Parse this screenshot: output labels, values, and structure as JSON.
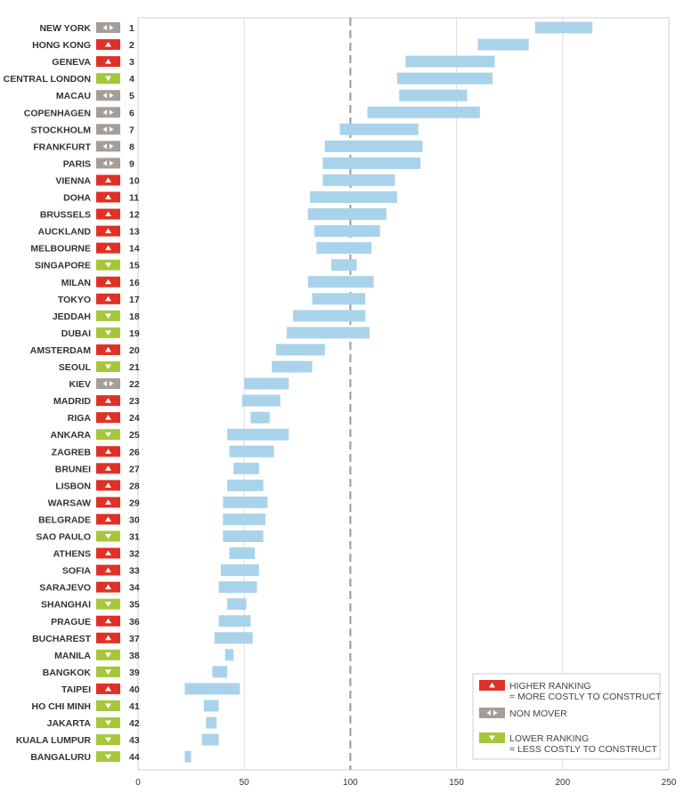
{
  "chart_data": {
    "type": "range-bar",
    "x_axis": {
      "min": 0,
      "max": 250,
      "ticks": [
        0,
        50,
        100,
        150,
        200,
        250
      ],
      "reference_line": 100
    },
    "grid": true,
    "colors": {
      "bar": "#a9d3ea",
      "higher": "#e03127",
      "non_mover": "#a59e98",
      "lower": "#a6c73a",
      "reference": "#999999"
    },
    "rows": [
      {
        "city": "NEW YORK",
        "rank": "1",
        "status": "non_mover",
        "low": 187,
        "high": 214
      },
      {
        "city": "HONG KONG",
        "rank": "2",
        "status": "higher",
        "low": 160,
        "high": 184
      },
      {
        "city": "GENEVA",
        "rank": "3",
        "status": "higher",
        "low": 126,
        "high": 168
      },
      {
        "city": "CENTRAL LONDON",
        "rank": "4",
        "status": "lower",
        "low": 122,
        "high": 167
      },
      {
        "city": "MACAU",
        "rank": "5",
        "status": "non_mover",
        "low": 123,
        "high": 155
      },
      {
        "city": "COPENHAGEN",
        "rank": "6",
        "status": "non_mover",
        "low": 108,
        "high": 161
      },
      {
        "city": "STOCKHOLM",
        "rank": "7",
        "status": "non_mover",
        "low": 95,
        "high": 132
      },
      {
        "city": "FRANKFURT",
        "rank": "8",
        "status": "non_mover",
        "low": 88,
        "high": 134
      },
      {
        "city": "PARIS",
        "rank": "9",
        "status": "non_mover",
        "low": 87,
        "high": 133
      },
      {
        "city": "VIENNA",
        "rank": "10",
        "status": "higher",
        "low": 87,
        "high": 121
      },
      {
        "city": "DOHA",
        "rank": "11",
        "status": "higher",
        "low": 81,
        "high": 122
      },
      {
        "city": "BRUSSELS",
        "rank": "12",
        "status": "higher",
        "low": 80,
        "high": 117
      },
      {
        "city": "AUCKLAND",
        "rank": "13",
        "status": "higher",
        "low": 83,
        "high": 114
      },
      {
        "city": "MELBOURNE",
        "rank": "14",
        "status": "higher",
        "low": 84,
        "high": 110
      },
      {
        "city": "SINGAPORE",
        "rank": "15",
        "status": "lower",
        "low": 91,
        "high": 103
      },
      {
        "city": "MILAN",
        "rank": "16",
        "status": "higher",
        "low": 80,
        "high": 111
      },
      {
        "city": "TOKYO",
        "rank": "17",
        "status": "higher",
        "low": 82,
        "high": 107
      },
      {
        "city": "JEDDAH",
        "rank": "18",
        "status": "lower",
        "low": 73,
        "high": 107
      },
      {
        "city": "DUBAI",
        "rank": "19",
        "status": "lower",
        "low": 70,
        "high": 109
      },
      {
        "city": "AMSTERDAM",
        "rank": "20",
        "status": "higher",
        "low": 65,
        "high": 88
      },
      {
        "city": "SEOUL",
        "rank": "21",
        "status": "lower",
        "low": 63,
        "high": 82
      },
      {
        "city": "KIEV",
        "rank": "22",
        "status": "non_mover",
        "low": 50,
        "high": 71
      },
      {
        "city": "MADRID",
        "rank": "23",
        "status": "higher",
        "low": 49,
        "high": 67
      },
      {
        "city": "RIGA",
        "rank": "24",
        "status": "higher",
        "low": 53,
        "high": 62
      },
      {
        "city": "ANKARA",
        "rank": "25",
        "status": "lower",
        "low": 42,
        "high": 71
      },
      {
        "city": "ZAGREB",
        "rank": "26",
        "status": "higher",
        "low": 43,
        "high": 64
      },
      {
        "city": "BRUNEI",
        "rank": "27",
        "status": "higher",
        "low": 45,
        "high": 57
      },
      {
        "city": "LISBON",
        "rank": "28",
        "status": "higher",
        "low": 42,
        "high": 59
      },
      {
        "city": "WARSAW",
        "rank": "29",
        "status": "higher",
        "low": 40,
        "high": 61
      },
      {
        "city": "BELGRADE",
        "rank": "30",
        "status": "higher",
        "low": 40,
        "high": 60
      },
      {
        "city": "SAO PAULO",
        "rank": "31",
        "status": "lower",
        "low": 40,
        "high": 59
      },
      {
        "city": "ATHENS",
        "rank": "32",
        "status": "higher",
        "low": 43,
        "high": 55
      },
      {
        "city": "SOFIA",
        "rank": "33",
        "status": "higher",
        "low": 39,
        "high": 57
      },
      {
        "city": "SARAJEVO",
        "rank": "34",
        "status": "higher",
        "low": 38,
        "high": 56
      },
      {
        "city": "SHANGHAI",
        "rank": "35",
        "status": "lower",
        "low": 42,
        "high": 51
      },
      {
        "city": "PRAGUE",
        "rank": "36",
        "status": "higher",
        "low": 38,
        "high": 53
      },
      {
        "city": "BUCHAREST",
        "rank": "37",
        "status": "higher",
        "low": 36,
        "high": 54
      },
      {
        "city": "MANILA",
        "rank": "38",
        "status": "lower",
        "low": 41,
        "high": 45
      },
      {
        "city": "BANGKOK",
        "rank": "39",
        "status": "lower",
        "low": 35,
        "high": 42
      },
      {
        "city": "TAIPEI",
        "rank": "40",
        "status": "higher",
        "low": 22,
        "high": 48
      },
      {
        "city": "HO CHI MINH",
        "rank": "41",
        "status": "lower",
        "low": 31,
        "high": 38
      },
      {
        "city": "JAKARTA",
        "rank": "42",
        "status": "lower",
        "low": 32,
        "high": 37
      },
      {
        "city": "KUALA LUMPUR",
        "rank": "43",
        "status": "lower",
        "low": 30,
        "high": 38
      },
      {
        "city": "BANGALURU",
        "rank": "44",
        "status": "lower",
        "low": 22,
        "high": 25
      }
    ],
    "legend": {
      "placement": "bottom-right",
      "items": [
        {
          "status": "higher",
          "lines": [
            "HIGHER RANKING",
            "= MORE COSTLY TO CONSTRUCT"
          ]
        },
        {
          "status": "non_mover",
          "lines": [
            "NON MOVER"
          ]
        },
        {
          "status": "lower",
          "lines": [
            "LOWER RANKING",
            "= LESS COSTLY TO CONSTRUCT"
          ]
        }
      ]
    }
  }
}
